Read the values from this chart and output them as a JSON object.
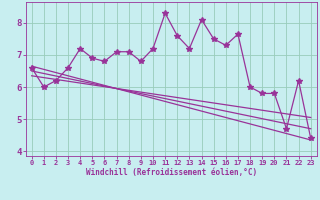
{
  "xlabel": "Windchill (Refroidissement éolien,°C)",
  "x_values": [
    0,
    1,
    2,
    3,
    4,
    5,
    6,
    7,
    8,
    9,
    10,
    11,
    12,
    13,
    14,
    15,
    16,
    17,
    18,
    19,
    20,
    21,
    22,
    23
  ],
  "y_main": [
    6.6,
    6.0,
    6.2,
    6.6,
    7.2,
    6.9,
    6.8,
    7.1,
    7.1,
    6.8,
    7.2,
    8.3,
    7.6,
    7.2,
    8.1,
    7.5,
    7.3,
    7.65,
    6.0,
    5.8,
    5.8,
    4.7,
    6.2,
    4.4
  ],
  "trend1_x": [
    0,
    23
  ],
  "trend1_y": [
    6.65,
    4.35
  ],
  "trend2_x": [
    0,
    23
  ],
  "trend2_y": [
    6.5,
    4.7
  ],
  "trend3_x": [
    0,
    23
  ],
  "trend3_y": [
    6.35,
    5.05
  ],
  "line_color": "#993399",
  "bg_color": "#c8eef0",
  "grid_color": "#99ccbb",
  "xlim": [
    -0.5,
    23.5
  ],
  "ylim": [
    3.85,
    8.65
  ],
  "yticks": [
    4,
    5,
    6,
    7,
    8
  ],
  "xticks": [
    0,
    1,
    2,
    3,
    4,
    5,
    6,
    7,
    8,
    9,
    10,
    11,
    12,
    13,
    14,
    15,
    16,
    17,
    18,
    19,
    20,
    21,
    22,
    23
  ],
  "marker": "*",
  "markersize": 4,
  "linewidth": 0.9
}
